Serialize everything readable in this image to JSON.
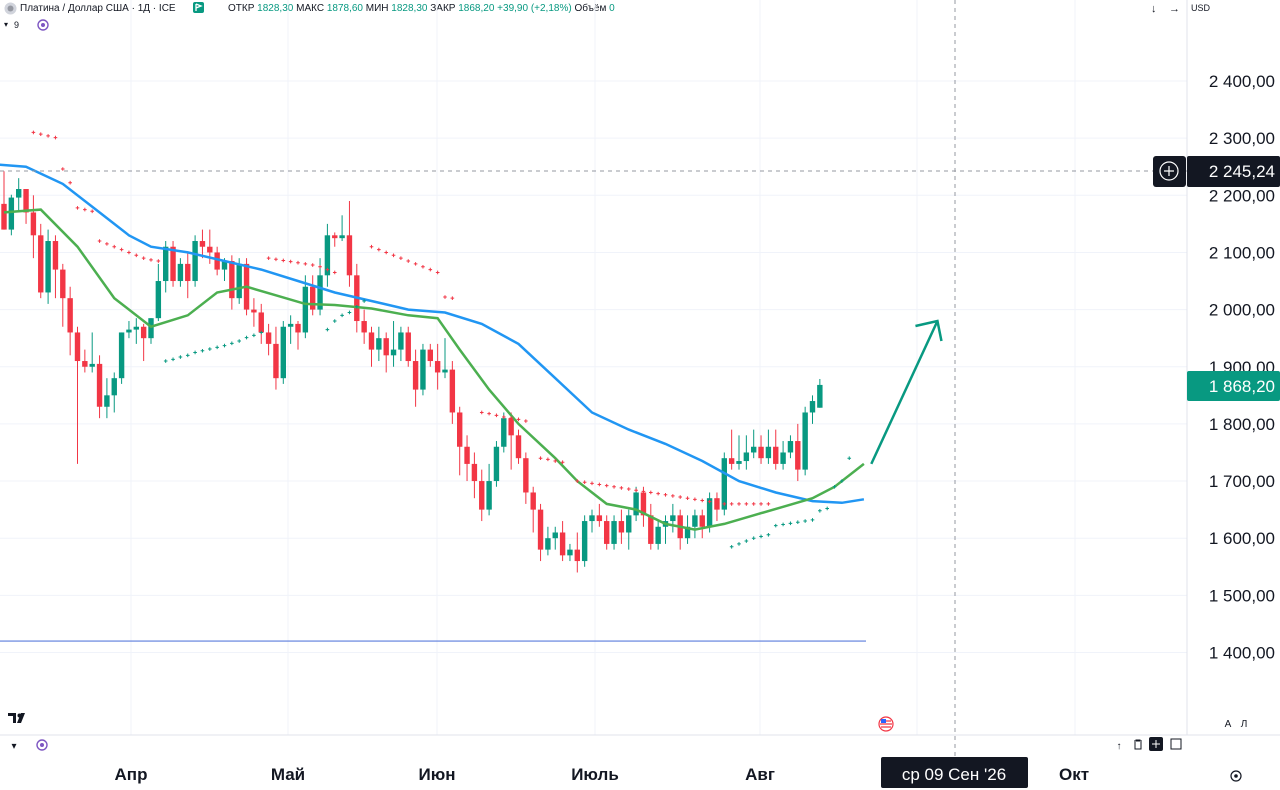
{
  "header": {
    "symbol": "Платина / Доллар США · 1Д · ICE",
    "open_label": "ОТКР",
    "open": "1828,30",
    "high_label": "МАКС",
    "high": "1878,60",
    "low_label": "МИН",
    "low": "1828,30",
    "close_label": "ЗАКР",
    "close": "1868,20",
    "change": "+39,90 (+2,18%)",
    "volume_label": "Объём",
    "volume": "0",
    "currency": "USD",
    "indicator_count": "9"
  },
  "colors": {
    "up": "#089981",
    "down": "#f23645",
    "ma_fast": "#4caf50",
    "ma_slow": "#2196f3",
    "sar_up": "#089981",
    "sar_down": "#f23645",
    "level": "#5b7cdc",
    "arrow": "#089981"
  },
  "price_scale": {
    "labels": [
      "2 400,00",
      "2 300,00",
      "2 200,00",
      "2 100,00",
      "2 000,00",
      "1 900,00",
      "1 800,00",
      "1 700,00",
      "1 600,00",
      "1 500,00",
      "1 400,00"
    ],
    "crosshair_price": "2 245,24",
    "last_price": "1 868,20",
    "bottom_left_label": "A",
    "bottom_right_label": "Л"
  },
  "time_scale": {
    "labels": [
      "Апр",
      "Май",
      "Июн",
      "Июль",
      "Авг",
      "Окт"
    ],
    "crosshair_date": "ср 09 Сен '26"
  },
  "chart_data": {
    "type": "candlestick",
    "title": "Платина / Доллар США · 1Д · ICE",
    "xlabel": "",
    "ylabel": "",
    "ylim": [
      1300,
      2500
    ],
    "grid": true,
    "candles": [
      [
        2185,
        2242,
        2140,
        2140
      ],
      [
        2140,
        2201,
        2130,
        2196
      ],
      [
        2196,
        2230,
        2170,
        2211
      ],
      [
        2211,
        2210,
        2150,
        2170
      ],
      [
        2170,
        2200,
        2090,
        2130
      ],
      [
        2130,
        2150,
        2020,
        2030
      ],
      [
        2030,
        2140,
        2010,
        2120
      ],
      [
        2120,
        2130,
        2020,
        2070
      ],
      [
        2070,
        2080,
        1970,
        2020
      ],
      [
        2020,
        2040,
        1920,
        1960
      ],
      [
        1960,
        1970,
        1730,
        1910
      ],
      [
        1910,
        1930,
        1890,
        1900
      ],
      [
        1900,
        1960,
        1890,
        1905
      ],
      [
        1905,
        1920,
        1810,
        1830
      ],
      [
        1830,
        1880,
        1810,
        1850
      ],
      [
        1850,
        1890,
        1820,
        1880
      ],
      [
        1880,
        1960,
        1870,
        1960
      ],
      [
        1960,
        1980,
        1950,
        1965
      ],
      [
        1965,
        1985,
        1940,
        1970
      ],
      [
        1970,
        1975,
        1910,
        1950
      ],
      [
        1950,
        1985,
        1940,
        1985
      ],
      [
        1985,
        2080,
        1980,
        2050
      ],
      [
        2050,
        2120,
        2030,
        2110
      ],
      [
        2110,
        2120,
        2040,
        2050
      ],
      [
        2050,
        2090,
        2040,
        2080
      ],
      [
        2080,
        2100,
        2020,
        2050
      ],
      [
        2050,
        2130,
        2040,
        2120
      ],
      [
        2120,
        2140,
        2090,
        2110
      ],
      [
        2110,
        2140,
        2080,
        2100
      ],
      [
        2100,
        2110,
        2060,
        2070
      ],
      [
        2070,
        2090,
        2050,
        2085
      ],
      [
        2085,
        2095,
        2000,
        2020
      ],
      [
        2020,
        2090,
        2010,
        2080
      ],
      [
        2080,
        2090,
        1990,
        2000
      ],
      [
        2000,
        2020,
        1970,
        1995
      ],
      [
        1995,
        2010,
        1940,
        1960
      ],
      [
        1960,
        1975,
        1920,
        1940
      ],
      [
        1940,
        1970,
        1860,
        1880
      ],
      [
        1880,
        1980,
        1870,
        1970
      ],
      [
        1970,
        1990,
        1940,
        1975
      ],
      [
        1975,
        1980,
        1930,
        1960
      ],
      [
        1960,
        2060,
        1950,
        2040
      ],
      [
        2040,
        2060,
        1990,
        2000
      ],
      [
        2000,
        2090,
        1990,
        2060
      ],
      [
        2060,
        2150,
        2040,
        2130
      ],
      [
        2130,
        2135,
        2110,
        2125
      ],
      [
        2125,
        2165,
        2120,
        2130
      ],
      [
        2130,
        2190,
        2040,
        2060
      ],
      [
        2060,
        2080,
        1960,
        1980
      ],
      [
        1980,
        2000,
        1940,
        1960
      ],
      [
        1960,
        1970,
        1900,
        1930
      ],
      [
        1930,
        1970,
        1910,
        1950
      ],
      [
        1950,
        1960,
        1890,
        1920
      ],
      [
        1920,
        1980,
        1900,
        1930
      ],
      [
        1930,
        1970,
        1910,
        1960
      ],
      [
        1960,
        1970,
        1900,
        1910
      ],
      [
        1910,
        1930,
        1830,
        1860
      ],
      [
        1860,
        1940,
        1850,
        1930
      ],
      [
        1930,
        1940,
        1900,
        1910
      ],
      [
        1910,
        1940,
        1860,
        1890
      ],
      [
        1890,
        1950,
        1880,
        1895
      ],
      [
        1895,
        1910,
        1800,
        1820
      ],
      [
        1820,
        1830,
        1710,
        1760
      ],
      [
        1760,
        1780,
        1700,
        1730
      ],
      [
        1730,
        1750,
        1670,
        1700
      ],
      [
        1700,
        1720,
        1630,
        1650
      ],
      [
        1650,
        1730,
        1640,
        1700
      ],
      [
        1700,
        1770,
        1690,
        1760
      ],
      [
        1760,
        1820,
        1750,
        1810
      ],
      [
        1810,
        1820,
        1720,
        1780
      ],
      [
        1780,
        1790,
        1730,
        1740
      ],
      [
        1740,
        1750,
        1660,
        1680
      ],
      [
        1680,
        1690,
        1610,
        1650
      ],
      [
        1650,
        1660,
        1560,
        1580
      ],
      [
        1580,
        1620,
        1570,
        1600
      ],
      [
        1600,
        1620,
        1580,
        1610
      ],
      [
        1610,
        1630,
        1560,
        1570
      ],
      [
        1570,
        1590,
        1560,
        1580
      ],
      [
        1580,
        1610,
        1540,
        1560
      ],
      [
        1560,
        1640,
        1550,
        1630
      ],
      [
        1630,
        1650,
        1610,
        1640
      ],
      [
        1640,
        1660,
        1620,
        1630
      ],
      [
        1630,
        1640,
        1580,
        1590
      ],
      [
        1590,
        1640,
        1580,
        1630
      ],
      [
        1630,
        1650,
        1590,
        1610
      ],
      [
        1610,
        1650,
        1580,
        1640
      ],
      [
        1640,
        1690,
        1630,
        1680
      ],
      [
        1680,
        1690,
        1620,
        1640
      ],
      [
        1640,
        1660,
        1580,
        1590
      ],
      [
        1590,
        1630,
        1580,
        1620
      ],
      [
        1620,
        1640,
        1590,
        1630
      ],
      [
        1630,
        1660,
        1610,
        1640
      ],
      [
        1640,
        1650,
        1580,
        1600
      ],
      [
        1600,
        1640,
        1590,
        1620
      ],
      [
        1620,
        1650,
        1600,
        1640
      ],
      [
        1640,
        1650,
        1600,
        1620
      ],
      [
        1620,
        1680,
        1610,
        1670
      ],
      [
        1670,
        1680,
        1630,
        1650
      ],
      [
        1650,
        1750,
        1640,
        1740
      ],
      [
        1740,
        1790,
        1720,
        1730
      ],
      [
        1730,
        1780,
        1720,
        1735
      ],
      [
        1735,
        1780,
        1720,
        1750
      ],
      [
        1750,
        1790,
        1740,
        1760
      ],
      [
        1760,
        1780,
        1730,
        1740
      ],
      [
        1740,
        1790,
        1730,
        1760
      ],
      [
        1760,
        1790,
        1720,
        1730
      ],
      [
        1730,
        1770,
        1720,
        1750
      ],
      [
        1750,
        1780,
        1740,
        1770
      ],
      [
        1770,
        1800,
        1700,
        1720
      ],
      [
        1720,
        1830,
        1710,
        1820
      ],
      [
        1820,
        1850,
        1800,
        1840
      ],
      [
        1828.3,
        1878.6,
        1828.3,
        1868.2
      ]
    ],
    "ma_fast": [
      [
        0,
        2170
      ],
      [
        5,
        2175
      ],
      [
        10,
        2110
      ],
      [
        15,
        2020
      ],
      [
        20,
        1970
      ],
      [
        25,
        1990
      ],
      [
        29,
        2030
      ],
      [
        33,
        2040
      ],
      [
        37,
        2025
      ],
      [
        41,
        2010
      ],
      [
        45,
        2008
      ],
      [
        50,
        2002
      ],
      [
        55,
        1990
      ],
      [
        59,
        1985
      ],
      [
        62,
        1930
      ],
      [
        66,
        1860
      ],
      [
        70,
        1800
      ],
      [
        75,
        1740
      ],
      [
        78,
        1700
      ],
      [
        82,
        1660
      ],
      [
        86,
        1650
      ],
      [
        90,
        1625
      ],
      [
        94,
        1615
      ],
      [
        98,
        1625
      ],
      [
        102,
        1640
      ],
      [
        106,
        1655
      ],
      [
        110,
        1670
      ],
      [
        113,
        1690
      ],
      [
        117,
        1730
      ]
    ],
    "ma_slow": [
      [
        -2,
        2255
      ],
      [
        3,
        2250
      ],
      [
        8,
        2220
      ],
      [
        13,
        2170
      ],
      [
        17,
        2130
      ],
      [
        20,
        2110
      ],
      [
        25,
        2100
      ],
      [
        30,
        2085
      ],
      [
        35,
        2070
      ],
      [
        40,
        2050
      ],
      [
        45,
        2030
      ],
      [
        50,
        2015
      ],
      [
        55,
        2000
      ],
      [
        60,
        1995
      ],
      [
        65,
        1975
      ],
      [
        70,
        1940
      ],
      [
        75,
        1880
      ],
      [
        80,
        1820
      ],
      [
        85,
        1790
      ],
      [
        90,
        1765
      ],
      [
        95,
        1735
      ],
      [
        100,
        1700
      ],
      [
        105,
        1680
      ],
      [
        110,
        1665
      ],
      [
        114,
        1662
      ],
      [
        117,
        1668
      ]
    ],
    "sar": [
      [
        4,
        2310,
        0
      ],
      [
        5,
        2307,
        0
      ],
      [
        6,
        2304,
        0
      ],
      [
        7,
        2301,
        0
      ],
      [
        8,
        2246,
        0
      ],
      [
        9,
        2222,
        0
      ],
      [
        10,
        2178,
        0
      ],
      [
        11,
        2175,
        0
      ],
      [
        12,
        2172,
        0
      ],
      [
        13,
        2120,
        0
      ],
      [
        14,
        2115,
        0
      ],
      [
        15,
        2110,
        0
      ],
      [
        16,
        2105,
        0
      ],
      [
        17,
        2100,
        0
      ],
      [
        18,
        2095,
        0
      ],
      [
        19,
        2090,
        0
      ],
      [
        20,
        2087,
        0
      ],
      [
        21,
        2085,
        0
      ],
      [
        22,
        1910,
        1
      ],
      [
        23,
        1913,
        1
      ],
      [
        24,
        1917,
        1
      ],
      [
        25,
        1920,
        1
      ],
      [
        26,
        1925,
        1
      ],
      [
        27,
        1928,
        1
      ],
      [
        28,
        1931,
        1
      ],
      [
        29,
        1934,
        1
      ],
      [
        30,
        1937,
        1
      ],
      [
        31,
        1941,
        1
      ],
      [
        32,
        1945,
        1
      ],
      [
        33,
        1951,
        1
      ],
      [
        34,
        1955,
        1
      ],
      [
        35,
        1960,
        1
      ],
      [
        36,
        2090,
        0
      ],
      [
        37,
        2088,
        0
      ],
      [
        38,
        2086,
        0
      ],
      [
        39,
        2084,
        0
      ],
      [
        40,
        2082,
        0
      ],
      [
        41,
        2080,
        0
      ],
      [
        42,
        2078,
        0
      ],
      [
        43,
        2075,
        0
      ],
      [
        44,
        2070,
        0
      ],
      [
        45,
        2065,
        0
      ],
      [
        44,
        1965,
        1
      ],
      [
        45,
        1980,
        1
      ],
      [
        46,
        1990,
        1
      ],
      [
        47,
        1995,
        1
      ],
      [
        48,
        2005,
        1
      ],
      [
        49,
        2015,
        1
      ],
      [
        50,
        2110,
        0
      ],
      [
        51,
        2105,
        0
      ],
      [
        52,
        2100,
        0
      ],
      [
        53,
        2095,
        0
      ],
      [
        54,
        2090,
        0
      ],
      [
        55,
        2085,
        0
      ],
      [
        56,
        2080,
        0
      ],
      [
        57,
        2075,
        0
      ],
      [
        58,
        2070,
        0
      ],
      [
        59,
        2065,
        0
      ],
      [
        60,
        2022,
        0
      ],
      [
        61,
        2020,
        0
      ],
      [
        65,
        1820,
        0
      ],
      [
        66,
        1818,
        0
      ],
      [
        67,
        1815,
        0
      ],
      [
        68,
        1812,
        0
      ],
      [
        69,
        1810,
        0
      ],
      [
        70,
        1808,
        0
      ],
      [
        71,
        1805,
        0
      ],
      [
        73,
        1740,
        0
      ],
      [
        74,
        1738,
        0
      ],
      [
        75,
        1735,
        0
      ],
      [
        76,
        1733,
        0
      ],
      [
        78,
        1700,
        0
      ],
      [
        79,
        1698,
        0
      ],
      [
        80,
        1696,
        0
      ],
      [
        81,
        1694,
        0
      ],
      [
        82,
        1692,
        0
      ],
      [
        83,
        1690,
        0
      ],
      [
        84,
        1688,
        0
      ],
      [
        85,
        1686,
        0
      ],
      [
        86,
        1684,
        0
      ],
      [
        87,
        1682,
        0
      ],
      [
        88,
        1680,
        0
      ],
      [
        89,
        1678,
        0
      ],
      [
        90,
        1676,
        0
      ],
      [
        91,
        1674,
        0
      ],
      [
        92,
        1672,
        0
      ],
      [
        93,
        1670,
        0
      ],
      [
        94,
        1668,
        0
      ],
      [
        95,
        1666,
        0
      ],
      [
        96,
        1664,
        0
      ],
      [
        97,
        1662,
        0
      ],
      [
        98,
        1660,
        0
      ],
      [
        99,
        1660,
        0
      ],
      [
        100,
        1660,
        0
      ],
      [
        101,
        1660,
        0
      ],
      [
        102,
        1660,
        0
      ],
      [
        103,
        1660,
        0
      ],
      [
        104,
        1660,
        0
      ],
      [
        99,
        1585,
        1
      ],
      [
        100,
        1590,
        1
      ],
      [
        101,
        1595,
        1
      ],
      [
        102,
        1600,
        1
      ],
      [
        103,
        1603,
        1
      ],
      [
        104,
        1606,
        1
      ],
      [
        105,
        1622,
        1
      ],
      [
        106,
        1624,
        1
      ],
      [
        107,
        1626,
        1
      ],
      [
        108,
        1628,
        1
      ],
      [
        109,
        1630,
        1
      ],
      [
        110,
        1632,
        1
      ],
      [
        111,
        1648,
        1
      ],
      [
        112,
        1652,
        1
      ],
      [
        113,
        1690,
        1
      ],
      [
        114,
        1700,
        1
      ],
      [
        115,
        1740,
        1
      ]
    ],
    "level_line": 1420,
    "projection_arrow": [
      [
        118,
        1730
      ],
      [
        127,
        1980
      ]
    ]
  }
}
